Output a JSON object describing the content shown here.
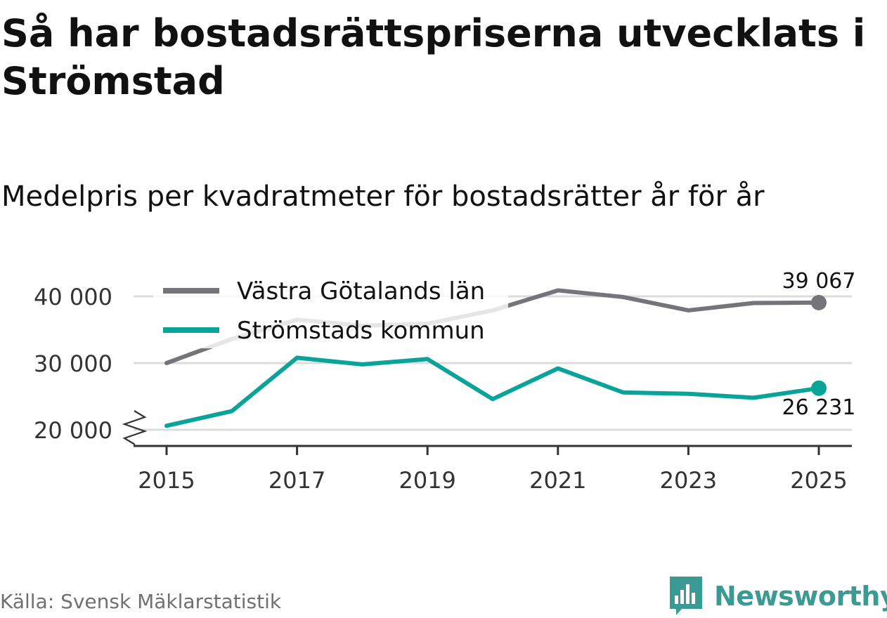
{
  "title": "Så har bostadsrättspriserna utvecklats i Strömstad",
  "subtitle": "Medelpris per kvadratmeter för bostadsrätter år för år",
  "source": "Källa: Svensk Mäklarstatistik",
  "brand": {
    "name": "Newsworthy",
    "logo_icon": "bar-chart-speech-bubble-icon",
    "color": "#3b9b94"
  },
  "chart_data": {
    "type": "line",
    "x": [
      2015,
      2016,
      2017,
      2018,
      2019,
      2020,
      2021,
      2022,
      2023,
      2024,
      2025
    ],
    "xticks": [
      "2015",
      "2017",
      "2019",
      "2021",
      "2023",
      "2025"
    ],
    "ylim": [
      20000,
      40000
    ],
    "yticks": [
      "20 000",
      "30 000",
      "40 000"
    ],
    "axis_break": true,
    "series": [
      {
        "name": "Västra Götalands län",
        "color": "#75747b",
        "values": [
          30000,
          33600,
          36500,
          35600,
          35900,
          37900,
          40900,
          39900,
          37900,
          39000,
          39067
        ],
        "end_label": "39 067"
      },
      {
        "name": "Strömstads kommun",
        "color": "#0aa39a",
        "values": [
          20600,
          22800,
          30800,
          29800,
          30600,
          24600,
          29200,
          25600,
          25400,
          24800,
          26231
        ],
        "end_label": "26 231"
      }
    ]
  }
}
